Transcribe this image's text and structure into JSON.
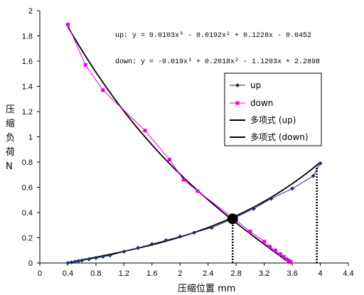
{
  "chart_data": {
    "type": "scatter",
    "xlabel": "压缩位置 mm",
    "ylabel": [
      "压",
      "缩",
      "负",
      "荷",
      "N"
    ],
    "xlim": [
      0,
      4.4
    ],
    "ylim": [
      0,
      2
    ],
    "x_ticks": [
      "0",
      "0.4",
      "0.8",
      "1.2",
      "1.6",
      "2",
      "2.4",
      "2.8",
      "3.2",
      "3.6",
      "4",
      "4.4"
    ],
    "y_ticks": [
      "0",
      "0.2",
      "0.4",
      "0.6",
      "0.8",
      "1",
      "1.2",
      "1.4",
      "1.6",
      "1.8",
      "2"
    ],
    "grid": false,
    "legend_position": "right",
    "equations": {
      "up": "up: y = 0.0103x³ - 0.0192x² + 0.1228x - 0.0452",
      "down": "down: y = -0.019x³ + 0.2018x² - 1.1203x + 2.2898"
    },
    "legend": [
      "up",
      "down",
      "多项式 (up)",
      "多项式 (down)"
    ],
    "series": [
      {
        "name": "up",
        "marker": "diamond",
        "color": "#1f2d6b",
        "x": [
          0.4,
          0.45,
          0.5,
          0.55,
          0.6,
          0.7,
          0.8,
          0.9,
          1.0,
          1.2,
          1.4,
          1.6,
          1.8,
          2.0,
          2.2,
          2.45,
          2.75,
          3.05,
          3.3,
          3.6,
          3.9,
          4.0
        ],
        "y": [
          0.0,
          0.005,
          0.01,
          0.015,
          0.02,
          0.03,
          0.04,
          0.05,
          0.06,
          0.09,
          0.12,
          0.15,
          0.18,
          0.21,
          0.24,
          0.28,
          0.35,
          0.43,
          0.51,
          0.59,
          0.69,
          0.79
        ]
      },
      {
        "name": "down",
        "marker": "square",
        "color": "#e800e8",
        "x": [
          0.4,
          0.65,
          0.9,
          1.5,
          1.85,
          2.05,
          2.25,
          2.75,
          3.0,
          3.2,
          3.28,
          3.36,
          3.43,
          3.48,
          3.52,
          3.55,
          3.58
        ],
        "y": [
          1.89,
          1.57,
          1.37,
          1.05,
          0.82,
          0.66,
          0.57,
          0.36,
          0.25,
          0.17,
          0.13,
          0.1,
          0.07,
          0.05,
          0.03,
          0.02,
          0.01
        ]
      }
    ],
    "intersection": {
      "x": 2.75,
      "y": 0.35
    },
    "dotted_lines": [
      {
        "x": 2.75,
        "y_from": 0,
        "y_to": 0.35
      },
      {
        "x": 3.95,
        "y_from": 0,
        "y_to": 0.79
      }
    ]
  }
}
